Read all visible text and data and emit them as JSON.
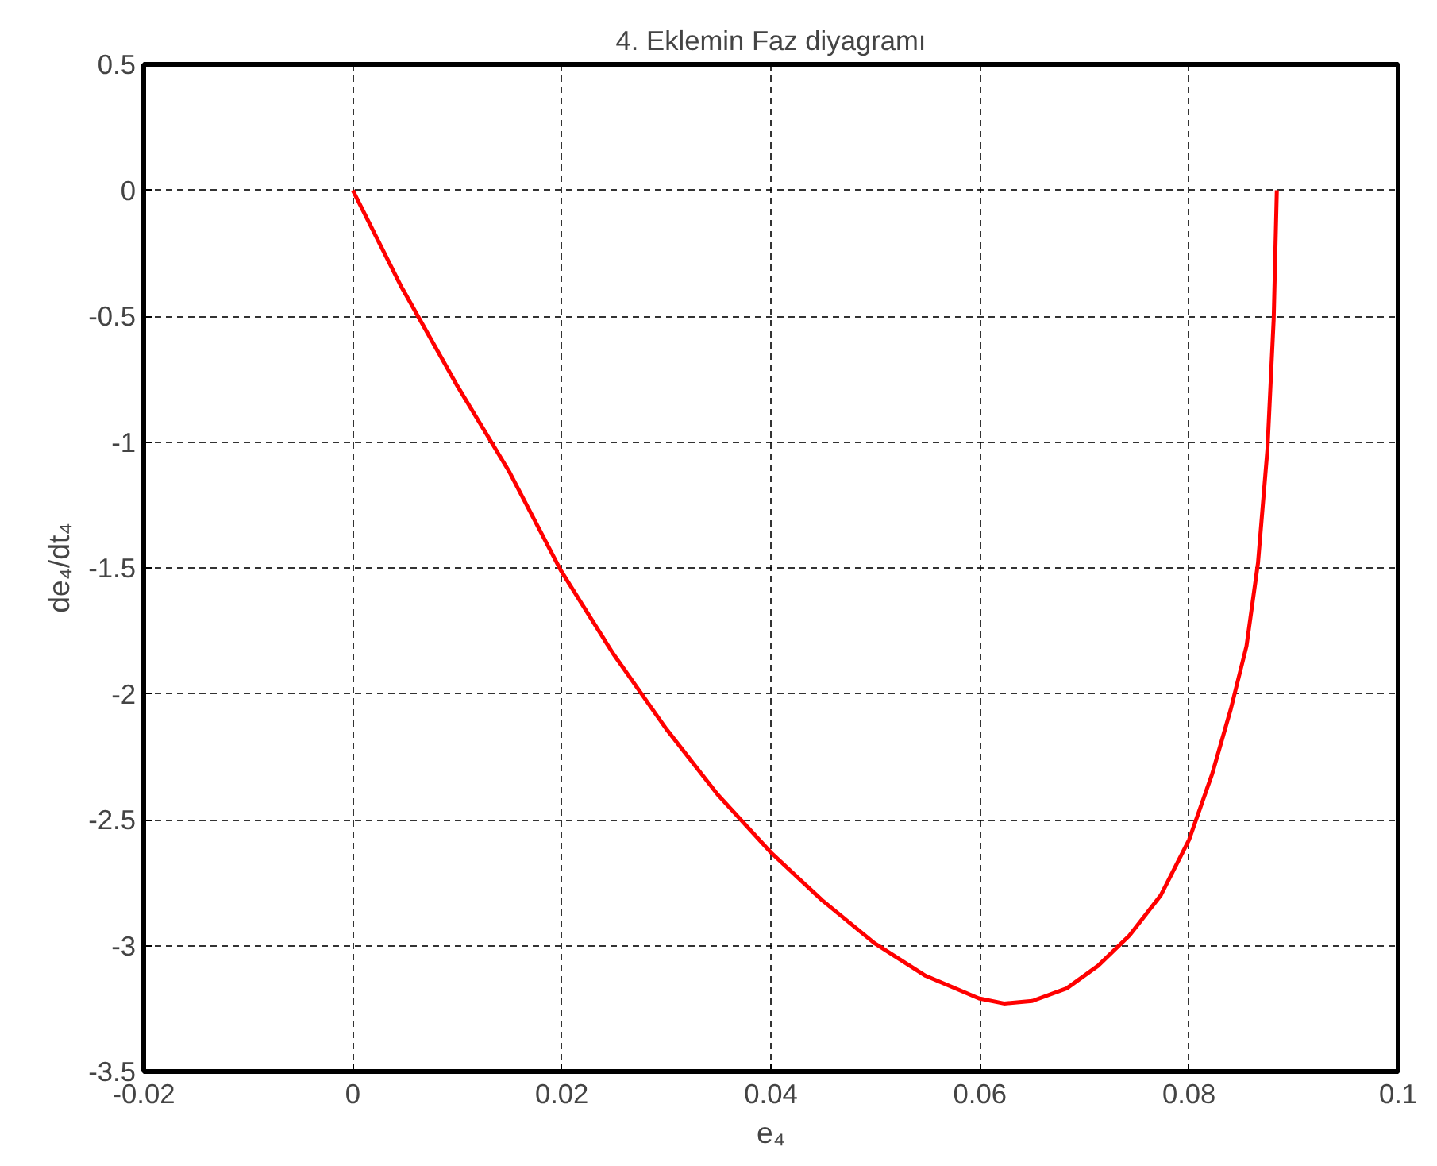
{
  "chart_data": {
    "type": "line",
    "title": "4. Eklemin Faz diyagramı",
    "xlabel": "e₄",
    "ylabel": "de₄/dt₄",
    "series": [
      {
        "color": "#ff0000",
        "x": [
          0,
          0.0046,
          0.0099,
          0.015,
          0.0199,
          0.0249,
          0.03,
          0.0349,
          0.04,
          0.0449,
          0.0499,
          0.0548,
          0.0599,
          0.0623,
          0.065,
          0.0683,
          0.0713,
          0.0743,
          0.0773,
          0.08,
          0.0822,
          0.084,
          0.0855,
          0.0866,
          0.0875,
          0.0881,
          0.0884
        ],
        "values": [
          0,
          -0.38,
          -0.77,
          -1.12,
          -1.51,
          -1.84,
          -2.14,
          -2.4,
          -2.63,
          -2.82,
          -2.99,
          -3.12,
          -3.21,
          -3.23,
          -3.22,
          -3.17,
          -3.08,
          -2.96,
          -2.8,
          -2.58,
          -2.32,
          -2.06,
          -1.81,
          -1.48,
          -1.03,
          -0.51,
          0
        ]
      }
    ],
    "xlim": [
      -0.02,
      0.1
    ],
    "ylim": [
      -3.5,
      0.5
    ],
    "xticks": [
      -0.02,
      0,
      0.02,
      0.04,
      0.06,
      0.08,
      0.1
    ],
    "yticks": [
      -3.5,
      -3,
      -2.5,
      -2,
      -1.5,
      -1,
      -0.5,
      0,
      0.5
    ],
    "grid": true,
    "marker": "none",
    "line_style": "solid"
  }
}
